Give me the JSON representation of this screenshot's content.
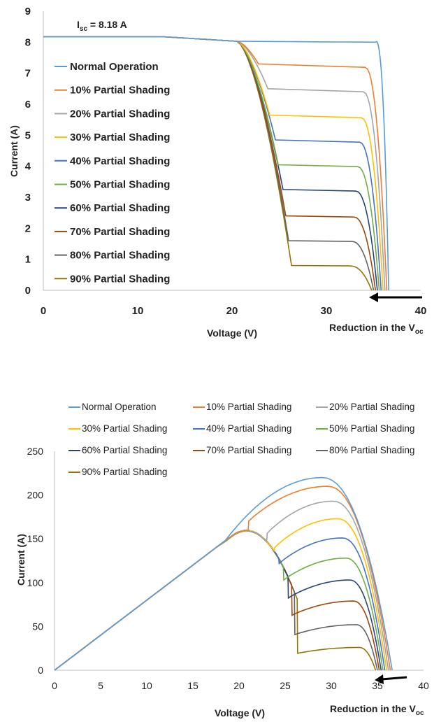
{
  "colors": [
    "#5b9bd5",
    "#ed7d31",
    "#a5a5a5",
    "#ffc000",
    "#4472c4",
    "#70ad47",
    "#264478",
    "#9e480e",
    "#636363",
    "#997300"
  ],
  "chart_data": [
    {
      "type": "line",
      "ylabel": "Current (A)",
      "xlabel": "Voltage (V)",
      "xlim": [
        0,
        40
      ],
      "ylim": [
        0,
        9
      ],
      "xticks": [
        "0",
        "10",
        "20",
        "30",
        "40"
      ],
      "yticks": [
        "0",
        "1",
        "2",
        "3",
        "4",
        "5",
        "6",
        "7",
        "8",
        "9"
      ],
      "annotation_main": "I",
      "annotation_sub": "sc",
      "annotation_tail": " = 8.18 A",
      "isc": 8.18,
      "arrow_main": "Reduction in the V",
      "arrow_sub": "oc",
      "legend_position": "left",
      "series": [
        {
          "name": "Normal Operation",
          "knee_v": 35.2,
          "plateau": 8.05,
          "voc": 36.6
        },
        {
          "name": "10% Partial Shading",
          "knee_v": 22.8,
          "plateau": 7.3,
          "voc": 36.4
        },
        {
          "name": "20% Partial Shading",
          "knee_v": 23.8,
          "plateau": 6.5,
          "voc": 36.2
        },
        {
          "name": "30% Partial Shading",
          "knee_v": 24.0,
          "plateau": 5.65,
          "voc": 36.0
        },
        {
          "name": "40% Partial Shading",
          "knee_v": 24.6,
          "plateau": 4.85,
          "voc": 35.8
        },
        {
          "name": "50% Partial Shading",
          "knee_v": 24.9,
          "plateau": 4.05,
          "voc": 35.6
        },
        {
          "name": "60% Partial Shading",
          "knee_v": 25.4,
          "plateau": 3.25,
          "voc": 35.4
        },
        {
          "name": "70% Partial Shading",
          "knee_v": 25.7,
          "plateau": 2.4,
          "voc": 35.2
        },
        {
          "name": "80% Partial Shading",
          "knee_v": 26.0,
          "plateau": 1.6,
          "voc": 35.0
        },
        {
          "name": "90% Partial Shading",
          "knee_v": 26.3,
          "plateau": 0.8,
          "voc": 34.8
        }
      ]
    },
    {
      "type": "line",
      "ylabel": "Current (A)",
      "xlabel": "Voltage (V)",
      "xlim": [
        0,
        40
      ],
      "ylim": [
        0,
        250
      ],
      "xticks": [
        "0",
        "5",
        "10",
        "15",
        "20",
        "25",
        "30",
        "35",
        "40"
      ],
      "yticks": [
        "0",
        "50",
        "100",
        "150",
        "200",
        "250"
      ],
      "arrow_main": "Reduction in the V",
      "arrow_sub": "oc",
      "legend_position": "top",
      "series": [
        {
          "name": "Normal Operation",
          "knee_v": 18.5,
          "peak": 220,
          "peak_v": 29.0,
          "voc": 36.6
        },
        {
          "name": "10% Partial Shading",
          "knee_v": 21.0,
          "peak": 210,
          "peak_v": 29.6,
          "voc": 36.4
        },
        {
          "name": "20% Partial Shading",
          "knee_v": 23.0,
          "peak": 193,
          "peak_v": 30.2,
          "voc": 36.2
        },
        {
          "name": "30% Partial Shading",
          "knee_v": 23.8,
          "peak": 173,
          "peak_v": 30.7,
          "voc": 36.0
        },
        {
          "name": "40% Partial Shading",
          "knee_v": 24.3,
          "peak": 151,
          "peak_v": 31.2,
          "voc": 35.8
        },
        {
          "name": "50% Partial Shading",
          "knee_v": 24.8,
          "peak": 128,
          "peak_v": 31.6,
          "voc": 35.6
        },
        {
          "name": "60% Partial Shading",
          "knee_v": 25.3,
          "peak": 103,
          "peak_v": 32.0,
          "voc": 35.4
        },
        {
          "name": "70% Partial Shading",
          "knee_v": 25.7,
          "peak": 79,
          "peak_v": 32.4,
          "voc": 35.2
        },
        {
          "name": "80% Partial Shading",
          "knee_v": 26.0,
          "peak": 52,
          "peak_v": 32.7,
          "voc": 35.0
        },
        {
          "name": "90% Partial Shading",
          "knee_v": 26.3,
          "peak": 26,
          "peak_v": 33.0,
          "voc": 34.8
        }
      ]
    }
  ]
}
